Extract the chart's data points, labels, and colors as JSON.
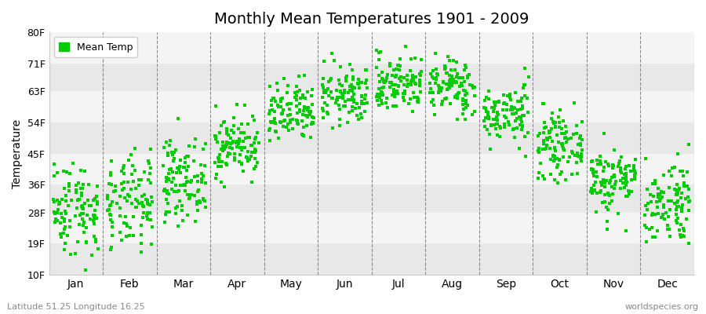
{
  "title": "Monthly Mean Temperatures 1901 - 2009",
  "ylabel": "Temperature",
  "xlabel_labels": [
    "Jan",
    "Feb",
    "Mar",
    "Apr",
    "May",
    "Jun",
    "Jul",
    "Aug",
    "Sep",
    "Oct",
    "Nov",
    "Dec"
  ],
  "ytick_labels": [
    "10F",
    "19F",
    "28F",
    "36F",
    "45F",
    "54F",
    "63F",
    "71F",
    "80F"
  ],
  "ytick_values": [
    10,
    19,
    28,
    36,
    45,
    54,
    63,
    71,
    80
  ],
  "ylim": [
    10,
    80
  ],
  "dot_color": "#00cc00",
  "dot_size": 8,
  "background_color": "#ffffff",
  "plot_bg_color": "#ffffff",
  "legend_label": "Mean Temp",
  "footer_left": "Latitude 51.25 Longitude 16.25",
  "footer_right": "worldspecies.org",
  "monthly_means_C": [
    -1.5,
    -1.0,
    3.0,
    8.5,
    13.5,
    16.5,
    18.5,
    18.0,
    13.5,
    8.5,
    3.0,
    -0.5
  ],
  "monthly_stds_C": [
    3.8,
    3.8,
    3.2,
    2.5,
    2.5,
    2.3,
    2.3,
    2.3,
    2.3,
    2.5,
    2.7,
    3.5
  ],
  "n_years": 109,
  "seed": 42,
  "band_colors": [
    "#e8e8e8",
    "#f4f4f4"
  ]
}
